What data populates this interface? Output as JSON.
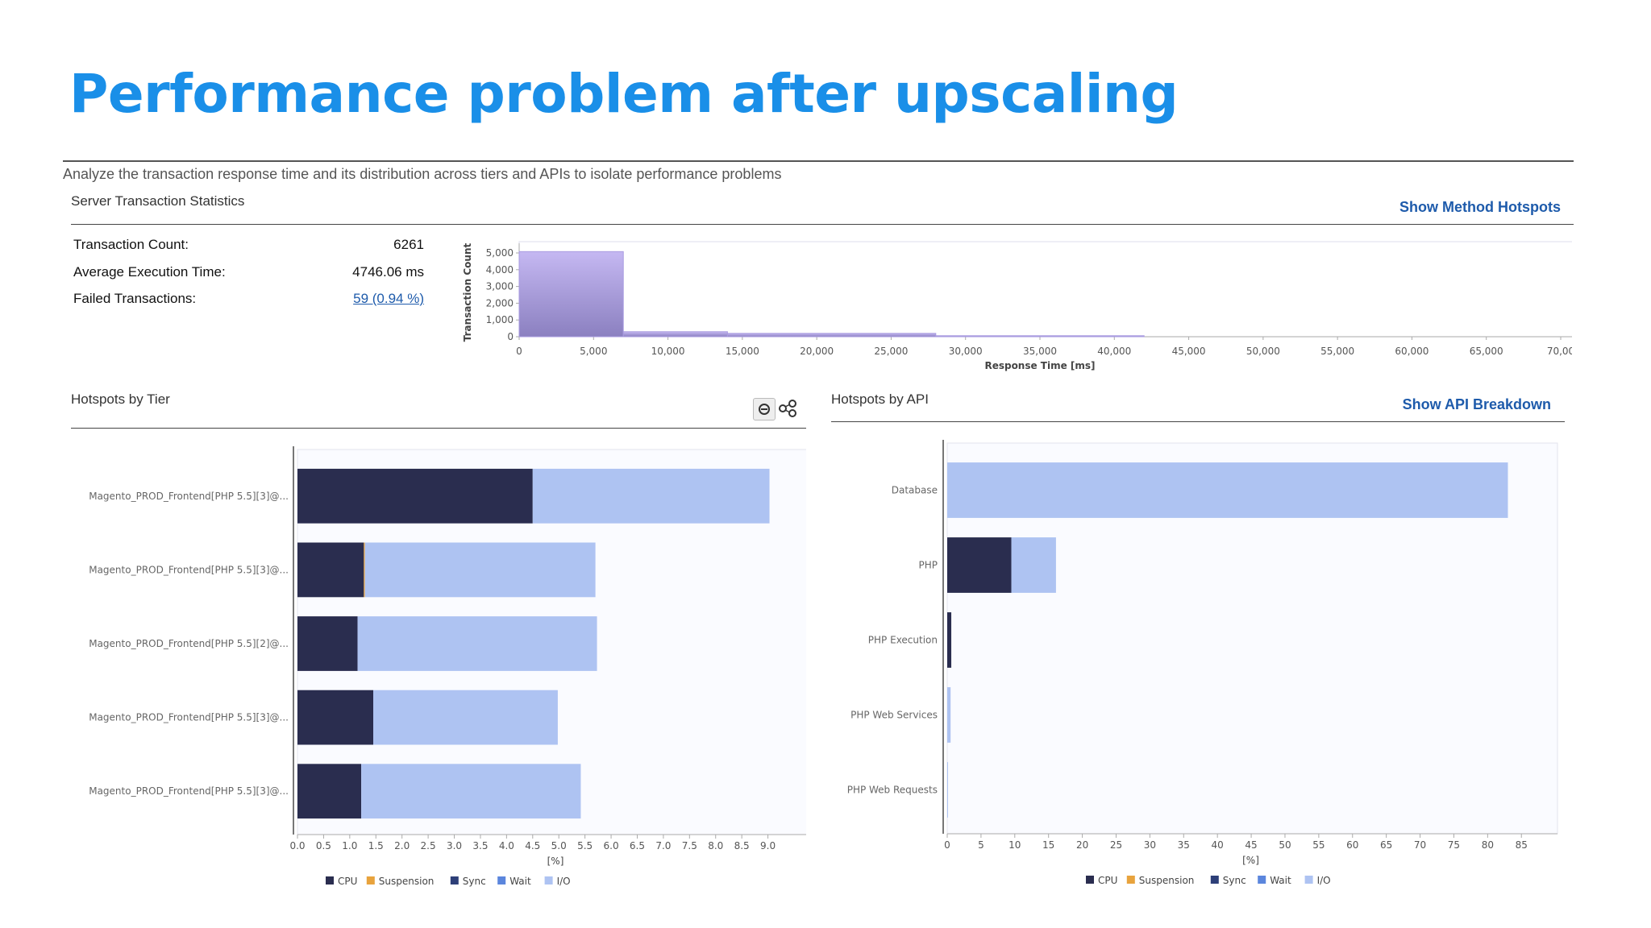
{
  "slide": {
    "title": "Performance problem after upscaling"
  },
  "header": {
    "description": "Analyze the transaction response time and its distribution across tiers and APIs to isolate performance problems",
    "section_title": "Server Transaction Statistics",
    "show_method_hotspots": "Show Method Hotspots"
  },
  "stats": {
    "transaction_count_label": "Transaction Count:",
    "transaction_count_value": "6261",
    "avg_exec_label": "Average Execution Time:",
    "avg_exec_value": "4746.06 ms",
    "failed_label": "Failed Transactions:",
    "failed_value": "59 (0.94 %)"
  },
  "tier_panel": {
    "title": "Hotspots by Tier"
  },
  "api_panel": {
    "title": "Hotspots by API",
    "show_api_breakdown": "Show API Breakdown"
  },
  "colors": {
    "CPU": "#2a2d4f",
    "Suspension": "#e8a33d",
    "Sync": "#2d3f78",
    "Wait": "#5b86dd",
    "I/O": "#aec3f2",
    "histogram": "#9a8fd0"
  },
  "chart_data": [
    {
      "type": "bar",
      "orientation": "vertical",
      "xlabel": "Response Time [ms]",
      "ylabel": "Transaction Count",
      "x_ticks": [
        "0",
        "5,000",
        "10,000",
        "15,000",
        "20,000",
        "25,000",
        "30,000",
        "35,000",
        "40,000",
        "45,000",
        "50,000",
        "55,000",
        "60,000",
        "65,000",
        "70,00"
      ],
      "y_ticks": [
        "0",
        "1,000",
        "2,000",
        "3,000",
        "4,000",
        "5,000"
      ],
      "xlim": [
        0,
        70000
      ],
      "ylim": [
        0,
        5000
      ],
      "bins": [
        {
          "x0": 0,
          "x1": 7000,
          "count": 5080
        },
        {
          "x0": 7000,
          "x1": 14000,
          "count": 300
        },
        {
          "x0": 14000,
          "x1": 28000,
          "count": 200
        },
        {
          "x0": 28000,
          "x1": 42000,
          "count": 60
        }
      ]
    },
    {
      "type": "bar",
      "orientation": "horizontal",
      "stacked": true,
      "xlabel": "[%]",
      "xlim": [
        0,
        9.5
      ],
      "x_ticks": [
        "0.0",
        "0.5",
        "1.0",
        "1.5",
        "2.0",
        "2.5",
        "3.0",
        "3.5",
        "4.0",
        "4.5",
        "5.0",
        "5.5",
        "6.0",
        "6.5",
        "7.0",
        "7.5",
        "8.0",
        "8.5",
        "9.0"
      ],
      "categories": [
        "Magento_PROD_Frontend[PHP 5.5][3]@...",
        "Magento_PROD_Frontend[PHP 5.5][3]@...",
        "Magento_PROD_Frontend[PHP 5.5][2]@...",
        "Magento_PROD_Frontend[PHP 5.5][3]@...",
        "Magento_PROD_Frontend[PHP 5.5][3]@..."
      ],
      "series": [
        {
          "name": "CPU",
          "values": [
            4.5,
            1.27,
            1.15,
            1.45,
            1.22
          ]
        },
        {
          "name": "Suspension",
          "values": [
            0,
            0.02,
            0,
            0,
            0
          ]
        },
        {
          "name": "Sync",
          "values": [
            0,
            0,
            0,
            0,
            0
          ]
        },
        {
          "name": "Wait",
          "values": [
            0,
            0,
            0,
            0,
            0
          ]
        },
        {
          "name": "I/O",
          "values": [
            4.53,
            4.41,
            4.58,
            3.53,
            4.2
          ]
        }
      ]
    },
    {
      "type": "bar",
      "orientation": "horizontal",
      "stacked": true,
      "xlabel": "[%]",
      "xlim": [
        0,
        87
      ],
      "x_ticks": [
        "0",
        "5",
        "10",
        "15",
        "20",
        "25",
        "30",
        "35",
        "40",
        "45",
        "50",
        "55",
        "60",
        "65",
        "70",
        "75",
        "80",
        "85"
      ],
      "categories": [
        "Database",
        "PHP",
        "PHP Execution",
        "PHP Web Services",
        "PHP Web Requests"
      ],
      "series": [
        {
          "name": "CPU",
          "values": [
            0,
            9.5,
            0.6,
            0,
            0
          ]
        },
        {
          "name": "Suspension",
          "values": [
            0,
            0,
            0,
            0,
            0
          ]
        },
        {
          "name": "Sync",
          "values": [
            0,
            0,
            0,
            0,
            0
          ]
        },
        {
          "name": "Wait",
          "values": [
            0,
            0,
            0,
            0,
            0
          ]
        },
        {
          "name": "I/O",
          "values": [
            83,
            6.6,
            0,
            0.5,
            0.1
          ]
        }
      ]
    }
  ]
}
